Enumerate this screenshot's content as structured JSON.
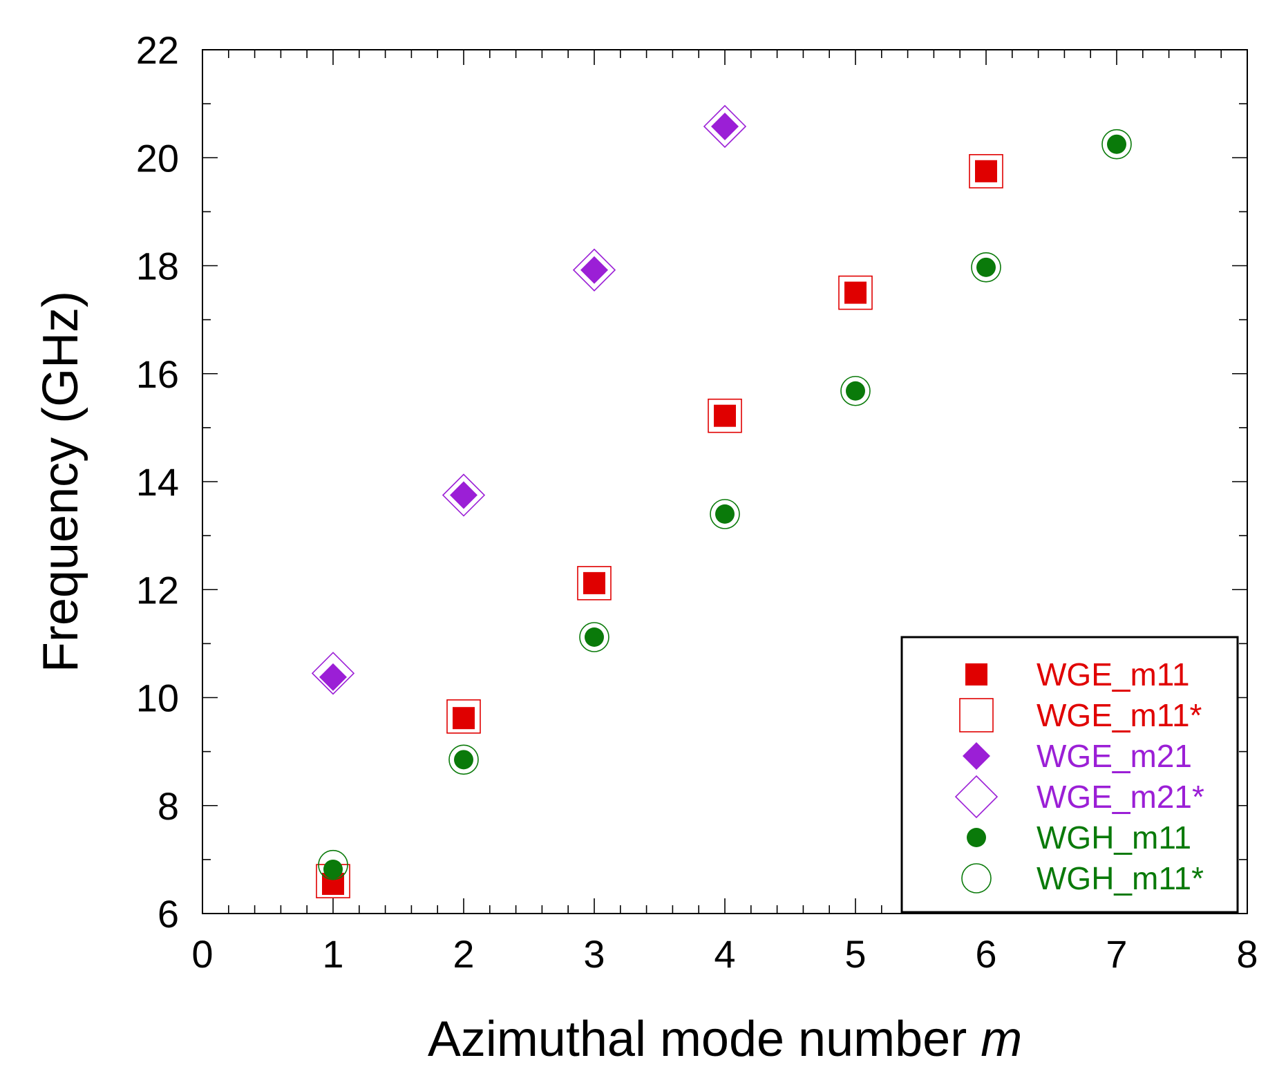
{
  "chart_data": {
    "type": "scatter",
    "title": "",
    "xlabel": "Azimuthal mode number",
    "xlabel_var": "m",
    "ylabel": "Frequency (GHz)",
    "xlim": [
      0,
      8
    ],
    "ylim": [
      6,
      22
    ],
    "xticks": [
      "0",
      "1",
      "2",
      "3",
      "4",
      "5",
      "6",
      "7",
      "8"
    ],
    "yticks": [
      "6",
      "8",
      "10",
      "12",
      "14",
      "16",
      "18",
      "20",
      "22"
    ],
    "grid": false,
    "legend_position": "bottom-right",
    "series": [
      {
        "name": "WGE_m11",
        "marker": "square",
        "filled": true,
        "color": "#e00000",
        "x": [
          1,
          2,
          3,
          4,
          5,
          6
        ],
        "y": [
          6.55,
          9.62,
          12.12,
          15.22,
          17.5,
          19.75
        ]
      },
      {
        "name": "WGE_m11*",
        "marker": "square",
        "filled": false,
        "color": "#e00000",
        "x": [
          1,
          2,
          3,
          4,
          5,
          6
        ],
        "y": [
          6.6,
          9.65,
          12.12,
          15.22,
          17.5,
          19.75
        ]
      },
      {
        "name": "WGE_m21",
        "marker": "diamond",
        "filled": true,
        "color": "#9b1fd6",
        "x": [
          1,
          2,
          3,
          4
        ],
        "y": [
          10.38,
          13.75,
          17.92,
          20.58
        ]
      },
      {
        "name": "WGE_m21*",
        "marker": "diamond",
        "filled": false,
        "color": "#9b1fd6",
        "x": [
          1,
          2,
          3,
          4
        ],
        "y": [
          10.45,
          13.75,
          17.92,
          20.58
        ]
      },
      {
        "name": "WGH_m11",
        "marker": "circle",
        "filled": true,
        "color": "#0a7a0a",
        "x": [
          1,
          2,
          3,
          4,
          5,
          6,
          7
        ],
        "y": [
          6.82,
          8.85,
          11.12,
          13.4,
          15.68,
          17.97,
          20.25
        ]
      },
      {
        "name": "WGH_m11*",
        "marker": "circle",
        "filled": false,
        "color": "#0a7a0a",
        "x": [
          1,
          2,
          3,
          4,
          5,
          6,
          7
        ],
        "y": [
          6.9,
          8.85,
          11.12,
          13.4,
          15.68,
          17.97,
          20.25
        ]
      }
    ]
  }
}
